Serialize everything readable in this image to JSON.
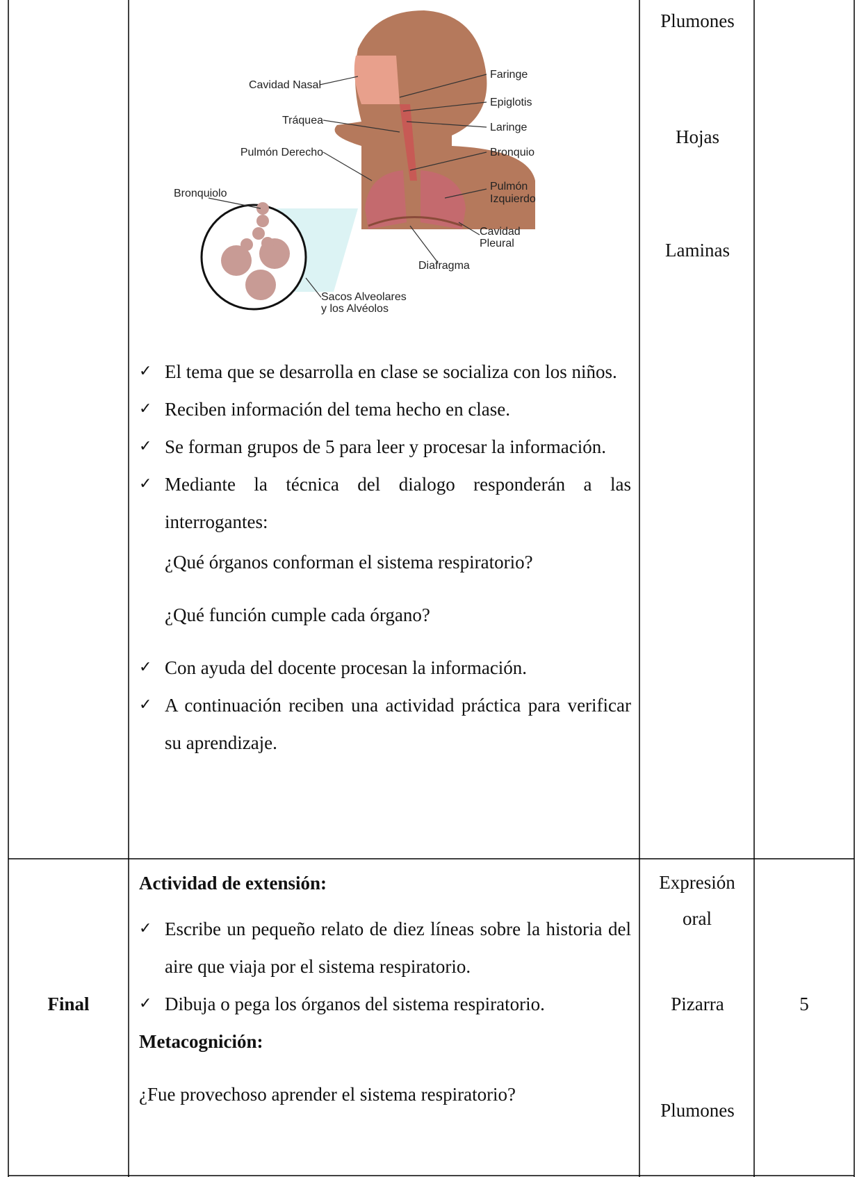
{
  "table": {
    "rows": [
      {
        "activities": {
          "diagram": {
            "labels": [
              "Cavidad Nasal",
              "Faringe",
              "Epiglotis",
              "Tráquea",
              "Laringe",
              "Pulmón Derecho",
              "Bronquio",
              "Bronquiolo",
              "Pulmón",
              "Izquierdo",
              "Cavidad",
              "Pleural",
              "Diafragma",
              "Sacos Alveolares",
              "y los Alvéolos"
            ]
          },
          "items": [
            "El tema que se desarrolla en clase se socializa con los niños.",
            "Reciben información del tema hecho en clase.",
            "Se forman grupos de 5 para leer y procesar la información.",
            "Mediante la técnica del dialogo responderán a las interrogantes:"
          ],
          "questions": [
            "¿Qué órganos conforman el sistema respiratorio?",
            "¿Qué función cumple cada órgano?"
          ],
          "items_after": [
            "Con ayuda del docente procesan la información.",
            "A continuación reciben una actividad práctica para verificar su aprendizaje."
          ]
        },
        "resources": [
          "Plumones",
          "Hojas",
          "Laminas"
        ]
      },
      {
        "stage": "Final",
        "activities": {
          "heading": "Actividad de extensión:",
          "items": [
            "Escribe  un pequeño relato de diez líneas sobre la historia del aire que viaja por el sistema respiratorio.",
            "Dibuja o pega los órganos del sistema respiratorio."
          ],
          "heading2": "Metacognición:",
          "question": "¿Fue provechoso aprender el sistema respiratorio?"
        },
        "resources": [
          "Expresión oral",
          "Pizarra",
          "Plumones"
        ],
        "time": "5"
      }
    ]
  }
}
